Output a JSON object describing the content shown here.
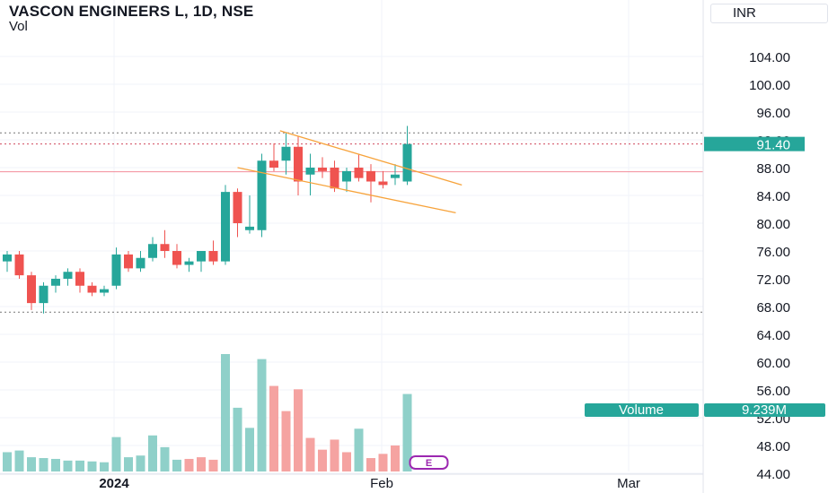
{
  "header": {
    "title": "VASCON ENGINEERS L, 1D, NSE",
    "subtitle": "Vol"
  },
  "currency_button": "INR",
  "price_label": "91.40",
  "volume_label": {
    "name": "Volume",
    "value": "9.239M"
  },
  "earnings_marker": "E",
  "colors": {
    "up": "#26a69a",
    "down": "#ef5350",
    "vol_up": "#8fd0c9",
    "vol_down": "#f5a3a1",
    "trendline": "#f7a33b",
    "hline": "#f28b9a",
    "accent": "#26a69a",
    "earnings": "#9c27b0"
  },
  "chart_data": {
    "type": "candlestick",
    "y_axis": {
      "ticks": [
        44,
        48,
        52,
        56,
        60,
        64,
        68,
        72,
        76,
        80,
        84,
        88,
        92,
        96,
        100,
        104
      ],
      "range": [
        41,
        106
      ]
    },
    "x_axis": {
      "labels": [
        "2024",
        "Feb",
        "Mar"
      ]
    },
    "candles": [
      {
        "o": 74.5,
        "h": 76.0,
        "l": 73.0,
        "c": 75.5
      },
      {
        "o": 75.5,
        "h": 76.0,
        "l": 72.0,
        "c": 72.5
      },
      {
        "o": 72.5,
        "h": 73.0,
        "l": 67.5,
        "c": 68.5
      },
      {
        "o": 68.5,
        "h": 71.5,
        "l": 67.0,
        "c": 71.0
      },
      {
        "o": 71.0,
        "h": 72.5,
        "l": 70.0,
        "c": 72.0
      },
      {
        "o": 72.0,
        "h": 73.5,
        "l": 71.0,
        "c": 73.0
      },
      {
        "o": 73.0,
        "h": 73.5,
        "l": 70.0,
        "c": 71.0
      },
      {
        "o": 71.0,
        "h": 71.5,
        "l": 69.5,
        "c": 70.0
      },
      {
        "o": 70.0,
        "h": 71.0,
        "l": 69.5,
        "c": 70.5
      },
      {
        "o": 71.0,
        "h": 76.5,
        "l": 70.5,
        "c": 75.5
      },
      {
        "o": 75.5,
        "h": 76.0,
        "l": 73.0,
        "c": 73.5
      },
      {
        "o": 73.5,
        "h": 76.0,
        "l": 73.0,
        "c": 75.0
      },
      {
        "o": 75.0,
        "h": 78.0,
        "l": 74.5,
        "c": 77.0
      },
      {
        "o": 77.0,
        "h": 79.0,
        "l": 75.0,
        "c": 76.0
      },
      {
        "o": 76.0,
        "h": 77.0,
        "l": 73.5,
        "c": 74.0
      },
      {
        "o": 74.0,
        "h": 75.0,
        "l": 73.0,
        "c": 74.5
      },
      {
        "o": 74.5,
        "h": 76.0,
        "l": 73.0,
        "c": 76.0
      },
      {
        "o": 76.0,
        "h": 77.5,
        "l": 74.0,
        "c": 74.5
      },
      {
        "o": 74.5,
        "h": 85.5,
        "l": 74.0,
        "c": 84.5
      },
      {
        "o": 84.5,
        "h": 85.0,
        "l": 78.0,
        "c": 80.0
      },
      {
        "o": 79.0,
        "h": 84.0,
        "l": 78.5,
        "c": 79.5
      },
      {
        "o": 79.0,
        "h": 90.0,
        "l": 78.0,
        "c": 89.0
      },
      {
        "o": 89.0,
        "h": 91.5,
        "l": 87.5,
        "c": 88.0
      },
      {
        "o": 89.0,
        "h": 93.0,
        "l": 87.0,
        "c": 91.0
      },
      {
        "o": 91.0,
        "h": 92.5,
        "l": 84.0,
        "c": 86.0
      },
      {
        "o": 87.0,
        "h": 90.0,
        "l": 84.0,
        "c": 88.0
      },
      {
        "o": 88.0,
        "h": 89.5,
        "l": 86.5,
        "c": 87.5
      },
      {
        "o": 88.0,
        "h": 89.0,
        "l": 84.5,
        "c": 85.0
      },
      {
        "o": 86.0,
        "h": 88.0,
        "l": 84.5,
        "c": 87.5
      },
      {
        "o": 88.0,
        "h": 90.0,
        "l": 86.0,
        "c": 86.5
      },
      {
        "o": 87.5,
        "h": 88.5,
        "l": 83.0,
        "c": 86.0
      },
      {
        "o": 86.0,
        "h": 87.5,
        "l": 85.0,
        "c": 85.5
      },
      {
        "o": 86.5,
        "h": 88.5,
        "l": 85.5,
        "c": 87.0
      },
      {
        "o": 86.0,
        "h": 94.0,
        "l": 85.5,
        "c": 91.4
      }
    ],
    "volumes_m": [
      2.3,
      2.5,
      1.7,
      1.6,
      1.5,
      1.3,
      1.3,
      1.2,
      1.1,
      4.1,
      1.7,
      1.9,
      4.3,
      2.9,
      1.4,
      1.5,
      1.7,
      1.4,
      14.0,
      7.6,
      5.2,
      13.4,
      10.2,
      7.2,
      9.8,
      4.0,
      2.6,
      3.8,
      2.3,
      5.1,
      1.6,
      2.1,
      3.1,
      9.239
    ],
    "volume_types": [
      "up",
      "up",
      "up",
      "up",
      "up",
      "up",
      "up",
      "up",
      "up",
      "up",
      "up",
      "up",
      "up",
      "up",
      "up",
      "down",
      "down",
      "down",
      "up",
      "up",
      "up",
      "up",
      "down",
      "down",
      "down",
      "down",
      "down",
      "down",
      "down",
      "up",
      "down",
      "down",
      "down",
      "up"
    ],
    "trendlines": [
      {
        "from": {
          "i": 22.5,
          "p": 93.3
        },
        "to": {
          "i": 37.5,
          "p": 85.5
        }
      },
      {
        "from": {
          "i": 19.0,
          "p": 88.0
        },
        "to": {
          "i": 37.0,
          "p": 81.5
        }
      }
    ],
    "horizontal_lines": [
      {
        "price": 87.4,
        "style": "solid"
      },
      {
        "price": 93.0,
        "style": "dotted"
      },
      {
        "price": 91.4,
        "style": "dotted"
      },
      {
        "price": 67.2,
        "style": "dotted"
      }
    ]
  }
}
